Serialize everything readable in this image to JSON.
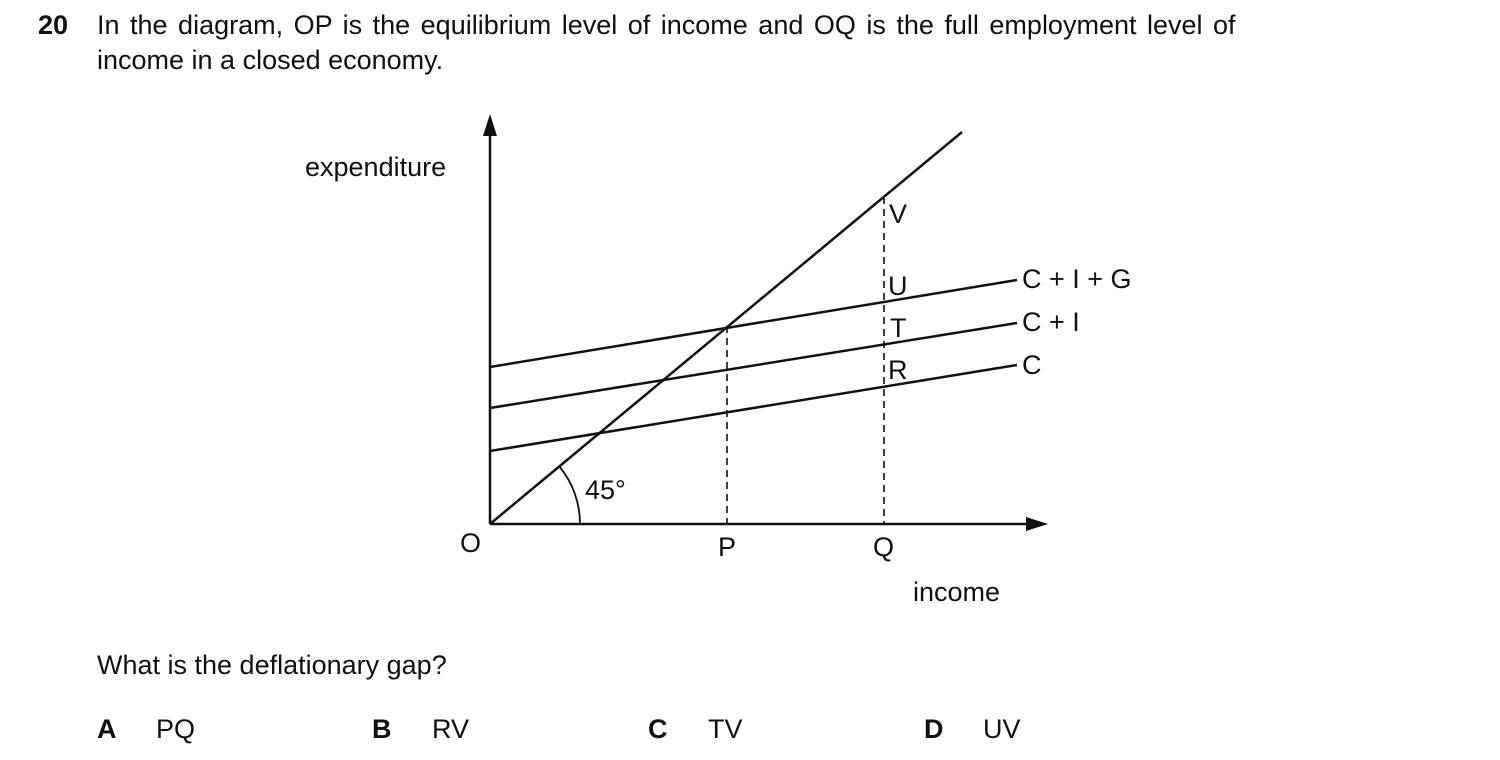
{
  "question": {
    "number": "20",
    "line1": "In the diagram, OP is the equilibrium level of income and OQ is the full employment level of",
    "line2": "income in a closed economy.",
    "prompt": "What is the deflationary gap?"
  },
  "diagram": {
    "y_axis_label": "expenditure",
    "x_axis_label": "income",
    "origin": "O",
    "x_points": [
      "P",
      "Q"
    ],
    "angle_label": "45°",
    "vertical_points": [
      "V",
      "U",
      "T",
      "R"
    ],
    "curves": [
      "C + I + G",
      "C + I",
      "C"
    ]
  },
  "options": [
    {
      "letter": "A",
      "text": "PQ"
    },
    {
      "letter": "B",
      "text": "RV"
    },
    {
      "letter": "C",
      "text": "TV"
    },
    {
      "letter": "D",
      "text": "UV"
    }
  ]
}
